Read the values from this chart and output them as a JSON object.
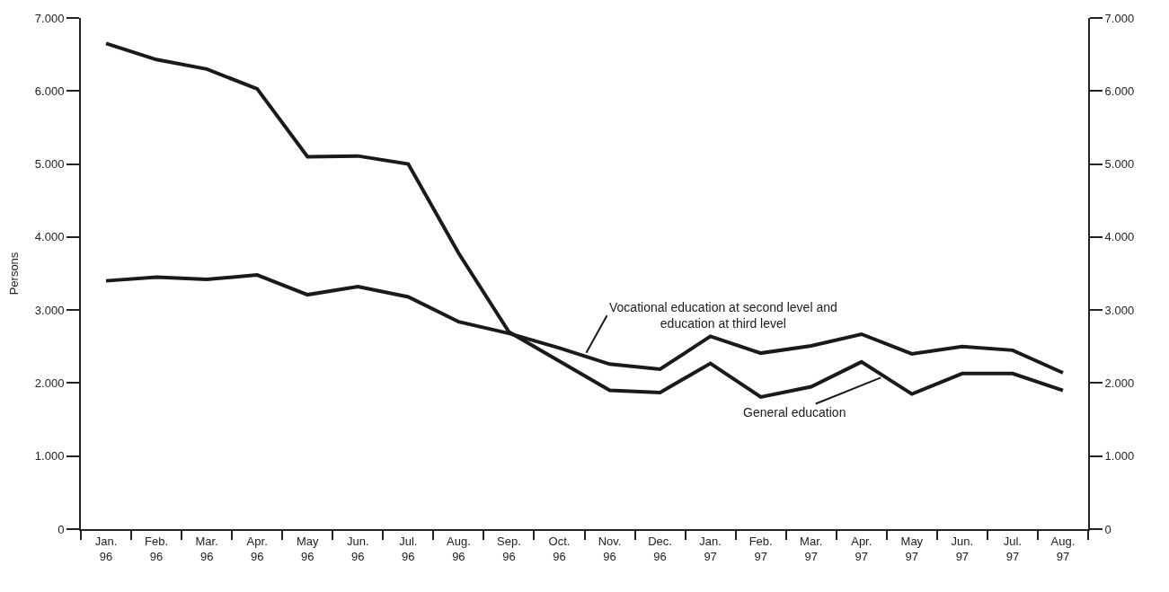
{
  "chart_data": {
    "type": "line",
    "ylabel": "Persons",
    "categories": [
      "Jan. 96",
      "Feb. 96",
      "Mar. 96",
      "Apr. 96",
      "May 96",
      "Jun. 96",
      "Jul. 96",
      "Aug. 96",
      "Sep. 96",
      "Oct. 96",
      "Nov. 96",
      "Dec. 96",
      "Jan. 97",
      "Feb. 97",
      "Mar. 97",
      "Apr. 97",
      "May 97",
      "Jun. 97",
      "Jul. 97",
      "Aug. 97"
    ],
    "series": [
      {
        "name": "General education",
        "color": "#1a1a1a",
        "values": [
          6650,
          6430,
          6300,
          6030,
          5100,
          5110,
          5000,
          3780,
          2700,
          2300,
          1900,
          1870,
          2270,
          1810,
          1950,
          2290,
          1850,
          2130,
          2130,
          1900
        ]
      },
      {
        "name": "Vocational education at second level and education at third level",
        "color": "#1a1a1a",
        "values": [
          3400,
          3450,
          3420,
          3480,
          3210,
          3320,
          3180,
          2840,
          2680,
          2480,
          2260,
          2190,
          2640,
          2410,
          2510,
          2670,
          2400,
          2500,
          2450,
          2140
        ]
      }
    ],
    "ylim": [
      0,
      7000
    ],
    "yticks": [
      0,
      {
        "value": 1000,
        "label": "1.000"
      },
      {
        "value": 2000,
        "label": "2.000"
      },
      {
        "value": 3000,
        "label": "3.000"
      },
      {
        "value": 4000,
        "label": "4.000"
      },
      {
        "value": 5000,
        "label": "5.000"
      },
      {
        "value": 6000,
        "label": "6.000"
      },
      {
        "value": 7000,
        "label": "7.000"
      }
    ],
    "y2lim": [
      0,
      7000
    ],
    "y2ticks": [
      0,
      {
        "value": 1000,
        "label": "1.000"
      },
      {
        "value": 2000,
        "label": "2.000"
      },
      {
        "value": 3000,
        "label": "3.000"
      },
      {
        "value": 4000,
        "label": "4.000"
      },
      {
        "value": 5000,
        "label": "5.000"
      },
      {
        "value": 6000,
        "label": "6.000"
      },
      {
        "value": 7000,
        "label": "7.000"
      }
    ],
    "legend": false,
    "grid": false,
    "marker": "none",
    "line_style": "solid"
  }
}
